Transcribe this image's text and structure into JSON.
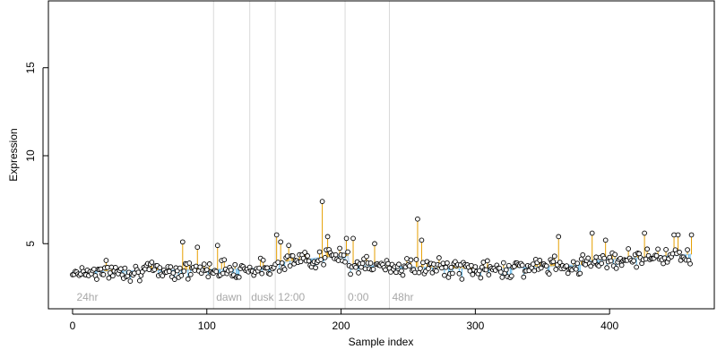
{
  "chart_data": {
    "type": "scatter",
    "title": "",
    "xlabel": "Sample index",
    "ylabel": "Expression",
    "xlim": [
      -18,
      478
    ],
    "ylim": [
      1.3,
      18.8
    ],
    "x_ticks": [
      0,
      100,
      200,
      300,
      400
    ],
    "y_ticks": [
      5,
      10,
      15
    ],
    "grid": false,
    "colors": {
      "point_fill": "#ffffff",
      "point_stroke": "#000000",
      "residual_up": "#e69f00",
      "residual_down": "#56b4e9",
      "fit_line": "#c6dbef",
      "vline": "#d9d9d9",
      "annotation_text": "#a8a8a8"
    },
    "annotations": [
      {
        "x": 3,
        "label": "24hr"
      },
      {
        "x": 107,
        "label": "dawn"
      },
      {
        "x": 133,
        "label": "dusk"
      },
      {
        "x": 153,
        "label": "12:00"
      },
      {
        "x": 205,
        "label": "0:00"
      },
      {
        "x": 238,
        "label": "48hr"
      }
    ],
    "vertical_lines": [
      105,
      132,
      151,
      203,
      236
    ],
    "baseline_segments": [
      {
        "x0": 0,
        "x1": 150,
        "y0": 3.4,
        "y1": 3.6
      },
      {
        "x0": 150,
        "x1": 185,
        "y0": 3.9,
        "y1": 4.2
      },
      {
        "x0": 185,
        "x1": 205,
        "y0": 4.2,
        "y1": 4.3
      },
      {
        "x0": 205,
        "x1": 320,
        "y0": 3.8,
        "y1": 3.5
      },
      {
        "x0": 320,
        "x1": 380,
        "y0": 3.6,
        "y1": 3.8
      },
      {
        "x0": 380,
        "x1": 462,
        "y0": 4.0,
        "y1": 4.4
      }
    ],
    "highlight_points": [
      {
        "x": 82,
        "y": 5.1
      },
      {
        "x": 93,
        "y": 4.8
      },
      {
        "x": 108,
        "y": 4.9
      },
      {
        "x": 152,
        "y": 5.5
      },
      {
        "x": 155,
        "y": 5.1
      },
      {
        "x": 161,
        "y": 4.9
      },
      {
        "x": 186,
        "y": 7.4
      },
      {
        "x": 190,
        "y": 5.4
      },
      {
        "x": 204,
        "y": 5.3
      },
      {
        "x": 209,
        "y": 5.3
      },
      {
        "x": 225,
        "y": 5.0
      },
      {
        "x": 257,
        "y": 6.4
      },
      {
        "x": 260,
        "y": 5.2
      },
      {
        "x": 362,
        "y": 5.4
      },
      {
        "x": 387,
        "y": 5.6
      },
      {
        "x": 397,
        "y": 5.2
      },
      {
        "x": 426,
        "y": 5.6
      },
      {
        "x": 448,
        "y": 5.5
      },
      {
        "x": 451,
        "y": 5.5
      },
      {
        "x": 461,
        "y": 5.5
      }
    ],
    "n_samples": 462,
    "seed": 7,
    "noise_sd": 0.35
  }
}
